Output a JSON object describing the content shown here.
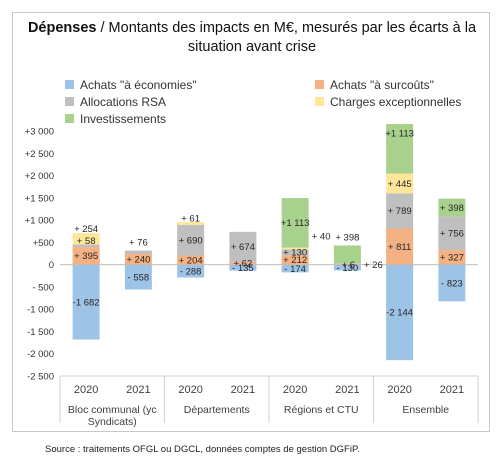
{
  "title": {
    "bold": "Dépenses",
    "rest": " / Montants des impacts en M€, mesurés par les écarts à la situation avant crise"
  },
  "legend": [
    {
      "name": "Achats \"à économies\"",
      "color": "#9dc3e6"
    },
    {
      "name": "Achats \"à surcoûts\"",
      "color": "#f4b183"
    },
    {
      "name": "Allocations RSA",
      "color": "#bfbfbf"
    },
    {
      "name": "Charges exceptionnelles",
      "color": "#ffe699"
    },
    {
      "name": "Investissements",
      "color": "#a9d18e"
    }
  ],
  "source": "Source : traitements OFGL ou DGCL, données comptes de gestion DGFiP.",
  "chart_data": {
    "type": "bar",
    "stacked": true,
    "ylim": [
      -2500,
      3000
    ],
    "ytick_step": 500,
    "yticks": [
      "+3 000",
      "+2 500",
      "+2 000",
      "+1 500",
      "+1 000",
      "+500",
      "0",
      "- 500",
      "-1 000",
      "-1 500",
      "-2 000",
      "-2 500"
    ],
    "categories": [
      "2020",
      "2021",
      "2020",
      "2021",
      "2020",
      "2021",
      "2020",
      "2021"
    ],
    "groups": [
      {
        "label": "Bloc communal (yc Syndicats)",
        "lines": [
          "Bloc communal (yc",
          "Syndicats)"
        ]
      },
      {
        "label": "Départements",
        "lines": [
          "Départements"
        ]
      },
      {
        "label": "Régions et CTU",
        "lines": [
          "Régions et CTU"
        ]
      },
      {
        "label": "Ensemble",
        "lines": [
          "Ensemble"
        ]
      }
    ],
    "series": [
      {
        "name": "Achats \"à économies\"",
        "color": "#9dc3e6",
        "values": [
          -1682,
          -558,
          -288,
          -135,
          -174,
          -130,
          -2144,
          -823
        ],
        "labels": [
          "-1 682",
          "- 558",
          "- 288",
          "- 135",
          "- 174",
          "- 130",
          "-2 144",
          "- 823"
        ]
      },
      {
        "name": "Achats \"à surcoûts\"",
        "color": "#f4b183",
        "values": [
          395,
          240,
          204,
          62,
          212,
          6,
          811,
          327
        ],
        "labels": [
          "+ 395",
          "+ 240",
          "+ 204",
          "+ 62",
          "+ 212",
          "+ 6",
          "+ 811",
          "+ 327"
        ]
      },
      {
        "name": "Allocations RSA",
        "color": "#bfbfbf",
        "values": [
          58,
          76,
          690,
          674,
          130,
          26,
          789,
          756
        ],
        "labels": [
          "+ 58",
          "+ 76",
          "+ 690",
          "+ 674",
          "+ 130",
          "+ 26",
          "+ 789",
          "+ 756"
        ]
      },
      {
        "name": "Charges exceptionnelles",
        "color": "#ffe699",
        "values": [
          254,
          0,
          61,
          0,
          40,
          0,
          445,
          0
        ],
        "labels": [
          "+ 254",
          "",
          "+ 61",
          "",
          "+ 40",
          "",
          "+ 445",
          ""
        ]
      },
      {
        "name": "Investissements",
        "color": "#a9d18e",
        "values": [
          0,
          0,
          0,
          0,
          1113,
          398,
          1113,
          398
        ],
        "labels": [
          "",
          "",
          "",
          "",
          "+1 113",
          "+ 398",
          "+1 113",
          "+ 398"
        ]
      }
    ]
  }
}
